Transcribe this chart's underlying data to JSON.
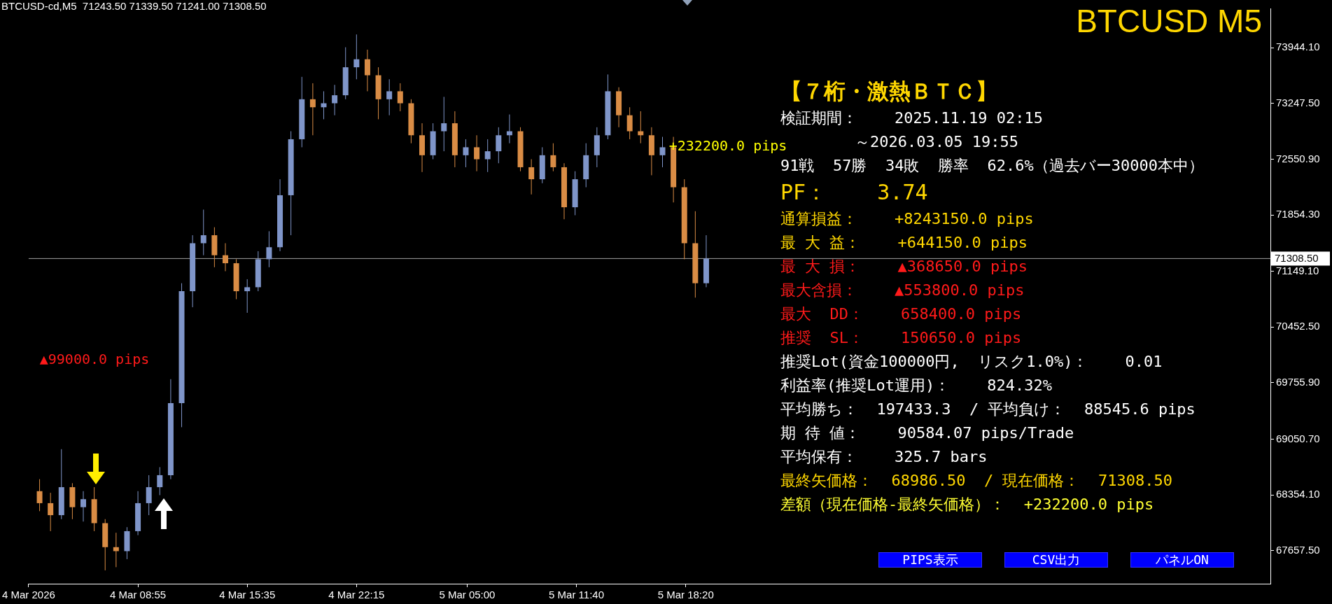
{
  "chart_data": [
    {
      "type": "candlestick",
      "title": "BTCUSD-cd,M5  71243.50 71339.50 71241.00 71308.50",
      "subtitle": "BTCUSD M5",
      "x": [
        "2026-03-04T02:55",
        "2026-03-04T03:35",
        "2026-03-04T04:15",
        "2026-03-04T04:55",
        "2026-03-04T05:35",
        "2026-03-04T06:15",
        "2026-03-04T06:55",
        "2026-03-04T07:35",
        "2026-03-04T08:15",
        "2026-03-04T08:55",
        "2026-03-04T09:35",
        "2026-03-04T10:15",
        "2026-03-04T10:55",
        "2026-03-04T11:35",
        "2026-03-04T12:15",
        "2026-03-04T12:55",
        "2026-03-04T13:35",
        "2026-03-04T14:15",
        "2026-03-04T14:55",
        "2026-03-04T15:35",
        "2026-03-04T16:15",
        "2026-03-04T16:55",
        "2026-03-04T17:35",
        "2026-03-04T18:15",
        "2026-03-04T18:55",
        "2026-03-04T19:35",
        "2026-03-04T20:15",
        "2026-03-04T20:55",
        "2026-03-04T21:35",
        "2026-03-04T22:15",
        "2026-03-04T22:55",
        "2026-03-04T23:35",
        "2026-03-05T00:15",
        "2026-03-05T00:55",
        "2026-03-05T01:35",
        "2026-03-05T02:15",
        "2026-03-05T02:55",
        "2026-03-05T03:35",
        "2026-03-05T04:15",
        "2026-03-05T04:55",
        "2026-03-05T05:35",
        "2026-03-05T06:15",
        "2026-03-05T06:55",
        "2026-03-05T07:35",
        "2026-03-05T08:15",
        "2026-03-05T08:55",
        "2026-03-05T09:35",
        "2026-03-05T10:15",
        "2026-03-05T10:55",
        "2026-03-05T11:35",
        "2026-03-05T12:15",
        "2026-03-05T12:55",
        "2026-03-05T13:35",
        "2026-03-05T14:15",
        "2026-03-05T14:55",
        "2026-03-05T15:35",
        "2026-03-05T16:15",
        "2026-03-05T16:55",
        "2026-03-05T17:35",
        "2026-03-05T18:15",
        "2026-03-05T18:55",
        "2026-03-05T19:35"
      ],
      "ohlc": [
        [
          68400,
          68550,
          68150,
          68250
        ],
        [
          68250,
          68380,
          67900,
          68100
        ],
        [
          68100,
          68925,
          68050,
          68450
        ],
        [
          68450,
          68500,
          68050,
          68200
        ],
        [
          68200,
          68400,
          68020,
          68300
        ],
        [
          68300,
          68450,
          67900,
          68000
        ],
        [
          68000,
          68050,
          67410,
          67700
        ],
        [
          67700,
          67880,
          67450,
          67650
        ],
        [
          67650,
          67950,
          67550,
          67900
        ],
        [
          67900,
          68400,
          67850,
          68250
        ],
        [
          68250,
          68600,
          68100,
          68450
        ],
        [
          68450,
          68700,
          68350,
          68600
        ],
        [
          68600,
          69800,
          68550,
          69500
        ],
        [
          69500,
          71000,
          69200,
          70900
        ],
        [
          70900,
          71600,
          70700,
          71500
        ],
        [
          71500,
          71920,
          71350,
          71600
        ],
        [
          71600,
          71700,
          71200,
          71350
        ],
        [
          71350,
          71500,
          71150,
          71250
        ],
        [
          71250,
          71300,
          70800,
          70900
        ],
        [
          70900,
          71050,
          70630,
          70950
        ],
        [
          70950,
          71400,
          70900,
          71300
        ],
        [
          71300,
          71650,
          71200,
          71450
        ],
        [
          71450,
          72300,
          71400,
          72100
        ],
        [
          72100,
          72900,
          71600,
          72800
        ],
        [
          72800,
          73580,
          72700,
          73300
        ],
        [
          73300,
          73500,
          72850,
          73200
        ],
        [
          73200,
          73400,
          73050,
          73250
        ],
        [
          73250,
          73480,
          73100,
          73350
        ],
        [
          73350,
          73950,
          73300,
          73700
        ],
        [
          73700,
          74110,
          73550,
          73800
        ],
        [
          73800,
          73920,
          73400,
          73600
        ],
        [
          73600,
          73700,
          73050,
          73300
        ],
        [
          73300,
          73550,
          73100,
          73400
        ],
        [
          73400,
          73500,
          73150,
          73250
        ],
        [
          73250,
          73300,
          72750,
          72850
        ],
        [
          72850,
          73000,
          72390,
          72600
        ],
        [
          72600,
          73000,
          72550,
          72900
        ],
        [
          72900,
          73330,
          72650,
          73000
        ],
        [
          73000,
          73150,
          72450,
          72600
        ],
        [
          72600,
          72800,
          72450,
          72700
        ],
        [
          72700,
          72850,
          72400,
          72550
        ],
        [
          72550,
          72800,
          72390,
          72650
        ],
        [
          72650,
          72950,
          72500,
          72850
        ],
        [
          72850,
          73110,
          72750,
          72900
        ],
        [
          72900,
          72950,
          72400,
          72450
        ],
        [
          72450,
          72550,
          72110,
          72300
        ],
        [
          72300,
          72700,
          72250,
          72600
        ],
        [
          72600,
          72750,
          72400,
          72450
        ],
        [
          72450,
          72500,
          71800,
          71950
        ],
        [
          71950,
          72400,
          71850,
          72300
        ],
        [
          72300,
          72750,
          72200,
          72600
        ],
        [
          72600,
          72950,
          72450,
          72850
        ],
        [
          72850,
          73610,
          72800,
          73400
        ],
        [
          73400,
          73450,
          72950,
          73100
        ],
        [
          73100,
          73200,
          72800,
          72900
        ],
        [
          72900,
          73150,
          72750,
          72850
        ],
        [
          72850,
          72950,
          72350,
          72600
        ],
        [
          72600,
          72830,
          72450,
          72700
        ],
        [
          72700,
          72830,
          72010,
          72200
        ],
        [
          72200,
          72300,
          71300,
          71500
        ],
        [
          71500,
          71900,
          70820,
          71000
        ],
        [
          71000,
          71600,
          70950,
          71308.5
        ]
      ],
      "xlim": [
        "2026-03-04T02:15",
        "2026-03-07T06:00"
      ],
      "xticks": [
        {
          "value": "2026-03-04T02:15",
          "label": "4 Mar 2026"
        },
        {
          "value": "2026-03-04T08:55",
          "label": "4 Mar 08:55"
        },
        {
          "value": "2026-03-04T15:35",
          "label": "4 Mar 15:35"
        },
        {
          "value": "2026-03-04T22:15",
          "label": "4 Mar 22:15"
        },
        {
          "value": "2026-03-05T05:00",
          "label": "5 Mar 05:00"
        },
        {
          "value": "2026-03-05T11:40",
          "label": "5 Mar 11:40"
        },
        {
          "value": "2026-03-05T18:20",
          "label": "5 Mar 18:20"
        }
      ],
      "ylim": [
        67243,
        74436
      ],
      "yticks": [
        {
          "value": 73944.1,
          "label": "73944.10"
        },
        {
          "value": 73247.5,
          "label": "73247.50"
        },
        {
          "value": 72550.9,
          "label": "72550.90"
        },
        {
          "value": 71854.3,
          "label": "71854.30"
        },
        {
          "value": 71149.1,
          "label": "71149.10"
        },
        {
          "value": 70452.5,
          "label": "70452.50"
        },
        {
          "value": 69755.9,
          "label": "69755.90"
        },
        {
          "value": 69050.7,
          "label": "69050.70"
        },
        {
          "value": 68354.1,
          "label": "68354.10"
        },
        {
          "value": 67657.5,
          "label": "67657.50"
        }
      ],
      "ref_lines": [
        {
          "axis": "y",
          "value": 71308.5,
          "label": "71308.50",
          "color": "#a0a0a0"
        }
      ],
      "annotations": [
        "+232200.0 pips",
        "▲99000.0 pips"
      ]
    },
    {
      "type": "other",
      "title": "【７桁・激熱ＢＴＣ】",
      "annotations": [
        "検証期間：    2025.11.19 02:15",
        "        ～2026.03.05 19:55",
        "91戦  57勝  34敗  勝率  62.6%（過去バー30000本中）",
        "PF：    3.74",
        "通算損益：    +8243150.0 pips",
        "最 大 益：    +644150.0 pips",
        "最 大 損：    ▲368650.0 pips",
        "最大含損：    ▲553800.0 pips",
        "最大  DD：    658400.0 pips",
        "推奨  SL：    150650.0 pips",
        "推奨Lot(資金100000円,  リスク1.0%)：    0.01",
        "利益率(推奨Lot運用)：    824.32%",
        "平均勝ち：  197433.3  / 平均負け：  88545.6 pips",
        "期 待 値：    90584.07 pips/Trade",
        "平均保有：    325.7 bars",
        "最終矢価格：  68986.50  / 現在価格：  71308.50",
        "差額（現在価格-最終矢価格）：  +232200.0 pips"
      ]
    },
    {
      "type": "other",
      "annotations": [
        "PIPS表示",
        "CSV出力",
        "パネルON"
      ]
    }
  ]
}
